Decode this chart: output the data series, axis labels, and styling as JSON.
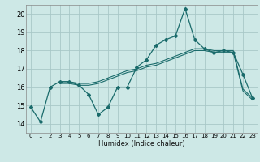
{
  "xlabel": "Humidex (Indice chaleur)",
  "xlim": [
    -0.5,
    23.5
  ],
  "ylim": [
    13.5,
    20.5
  ],
  "yticks": [
    14,
    15,
    16,
    17,
    18,
    19,
    20
  ],
  "xticks": [
    0,
    1,
    2,
    3,
    4,
    5,
    6,
    7,
    8,
    9,
    10,
    11,
    12,
    13,
    14,
    15,
    16,
    17,
    18,
    19,
    20,
    21,
    22,
    23
  ],
  "bg_color": "#cde8e6",
  "grid_color": "#a8c8c8",
  "line_color": "#1a6b6b",
  "line1_x": [
    0,
    1,
    2,
    3,
    4,
    5,
    6,
    7,
    8,
    9,
    10,
    11,
    12,
    13,
    14,
    15,
    16,
    17,
    18,
    19,
    20,
    21,
    22,
    23
  ],
  "line1_y": [
    14.9,
    14.1,
    16.0,
    16.3,
    16.3,
    16.1,
    15.6,
    14.5,
    14.9,
    16.0,
    16.0,
    17.1,
    17.5,
    18.3,
    18.6,
    18.8,
    20.3,
    18.6,
    18.1,
    17.9,
    18.0,
    17.9,
    16.7,
    15.4
  ],
  "line2_x": [
    3,
    4,
    5,
    6,
    7,
    8,
    9,
    10,
    11,
    12,
    13,
    14,
    15,
    16,
    17,
    18,
    19,
    20,
    21,
    22,
    23
  ],
  "line2_y": [
    16.3,
    16.3,
    16.2,
    16.2,
    16.3,
    16.5,
    16.7,
    16.9,
    17.0,
    17.2,
    17.3,
    17.5,
    17.7,
    17.9,
    18.1,
    18.1,
    18.0,
    18.0,
    18.0,
    15.9,
    15.4
  ],
  "line3_x": [
    3,
    4,
    5,
    6,
    7,
    8,
    9,
    10,
    11,
    12,
    13,
    14,
    15,
    16,
    17,
    18,
    19,
    20,
    21,
    22,
    23
  ],
  "line3_y": [
    16.2,
    16.2,
    16.1,
    16.1,
    16.2,
    16.4,
    16.6,
    16.8,
    16.9,
    17.1,
    17.2,
    17.4,
    17.6,
    17.8,
    18.0,
    18.0,
    17.9,
    17.9,
    17.9,
    15.8,
    15.3
  ],
  "xlabel_fontsize": 6,
  "ytick_fontsize": 6,
  "xtick_fontsize": 5
}
